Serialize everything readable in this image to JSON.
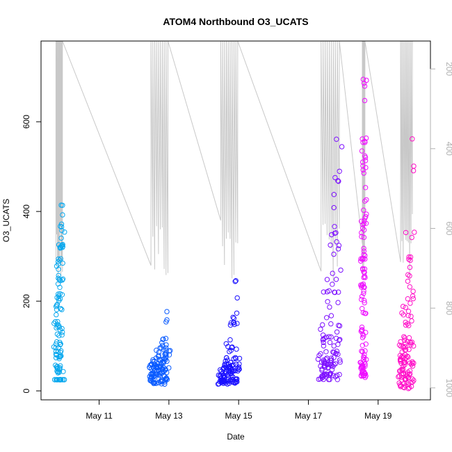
{
  "chart_data": {
    "type": "scatter",
    "title": "ATOM4 Northbound O3_UCATS",
    "xlabel": "Date",
    "ylabel": "O3_UCATS",
    "x_date_range": [
      "2018-05-09T08:00",
      "2018-05-20T12:00"
    ],
    "ylim": [
      -20,
      780
    ],
    "y_ticks": [
      0,
      200,
      400,
      600
    ],
    "x_ticks": [
      {
        "date": "2018-05-11",
        "label": "May 11"
      },
      {
        "date": "2018-05-13",
        "label": "May 13"
      },
      {
        "date": "2018-05-15",
        "label": "May 15"
      },
      {
        "date": "2018-05-17",
        "label": "May 17"
      },
      {
        "date": "2018-05-19",
        "label": "May 19"
      }
    ],
    "secondary_axis": {
      "quantity": "pressure",
      "range": [
        1030,
        130
      ],
      "reversed": true,
      "color": "#b0b0b0",
      "ticks": [
        200,
        400,
        600,
        800,
        1000
      ]
    },
    "grid": false,
    "series": [
      {
        "color": "#0aa8ee",
        "x_range": [
          "2018-05-09T18:00",
          "2018-05-09T23:00"
        ],
        "y_points": [
          [
            25,
            25
          ],
          [
            40,
            60
          ],
          [
            70,
            110
          ],
          [
            120,
            170
          ],
          [
            180,
            220
          ],
          [
            230,
            260
          ],
          [
            270,
            300
          ],
          [
            310,
            330
          ],
          [
            340,
            380
          ],
          [
            390,
            420
          ],
          [
            430,
            470
          ]
        ]
      },
      {
        "color": "#0a5bff",
        "x_range": [
          "2018-05-12T11:00",
          "2018-05-12T23:59"
        ],
        "y_points": [
          [
            15,
            25
          ],
          [
            25,
            40
          ],
          [
            35,
            55
          ],
          [
            45,
            70
          ],
          [
            50,
            90
          ],
          [
            60,
            100
          ],
          [
            100,
            120
          ],
          [
            150,
            200
          ],
          [
            210,
            250
          ]
        ]
      },
      {
        "color": "#1a10ff",
        "x_range": [
          "2018-05-14T11:00",
          "2018-05-14T23:59"
        ],
        "y_points": [
          [
            15,
            25
          ],
          [
            20,
            35
          ],
          [
            30,
            50
          ],
          [
            40,
            60
          ],
          [
            50,
            75
          ],
          [
            80,
            120
          ],
          [
            130,
            180
          ],
          [
            190,
            250
          ],
          [
            260,
            340
          ]
        ]
      },
      {
        "color": "#7d10ff",
        "x_range": [
          "2018-05-17T08:00",
          "2018-05-17T22:00"
        ],
        "y_points": [
          [
            25,
            40
          ],
          [
            45,
            60
          ],
          [
            60,
            90
          ],
          [
            100,
            150
          ],
          [
            160,
            250
          ],
          [
            260,
            380
          ],
          [
            390,
            500
          ],
          [
            510,
            600
          ],
          [
            610,
            710
          ]
        ]
      },
      {
        "color": "#ee10ff",
        "x_range": [
          "2018-05-18T13:00",
          "2018-05-18T15:00"
        ],
        "y_points": [
          [
            30,
            60
          ],
          [
            60,
            90
          ],
          [
            100,
            200
          ],
          [
            200,
            300
          ],
          [
            300,
            400
          ],
          [
            400,
            500
          ],
          [
            500,
            600
          ],
          [
            600,
            700
          ],
          [
            700,
            760
          ]
        ]
      },
      {
        "color": "#ff10c8",
        "x_range": [
          "2018-05-19T15:00",
          "2018-05-19T23:59"
        ],
        "y_points": [
          [
            5,
            30
          ],
          [
            30,
            60
          ],
          [
            60,
            80
          ],
          [
            80,
            110
          ],
          [
            110,
            200
          ],
          [
            200,
            300
          ],
          [
            300,
            400
          ],
          [
            400,
            500
          ],
          [
            500,
            575
          ]
        ]
      }
    ]
  }
}
